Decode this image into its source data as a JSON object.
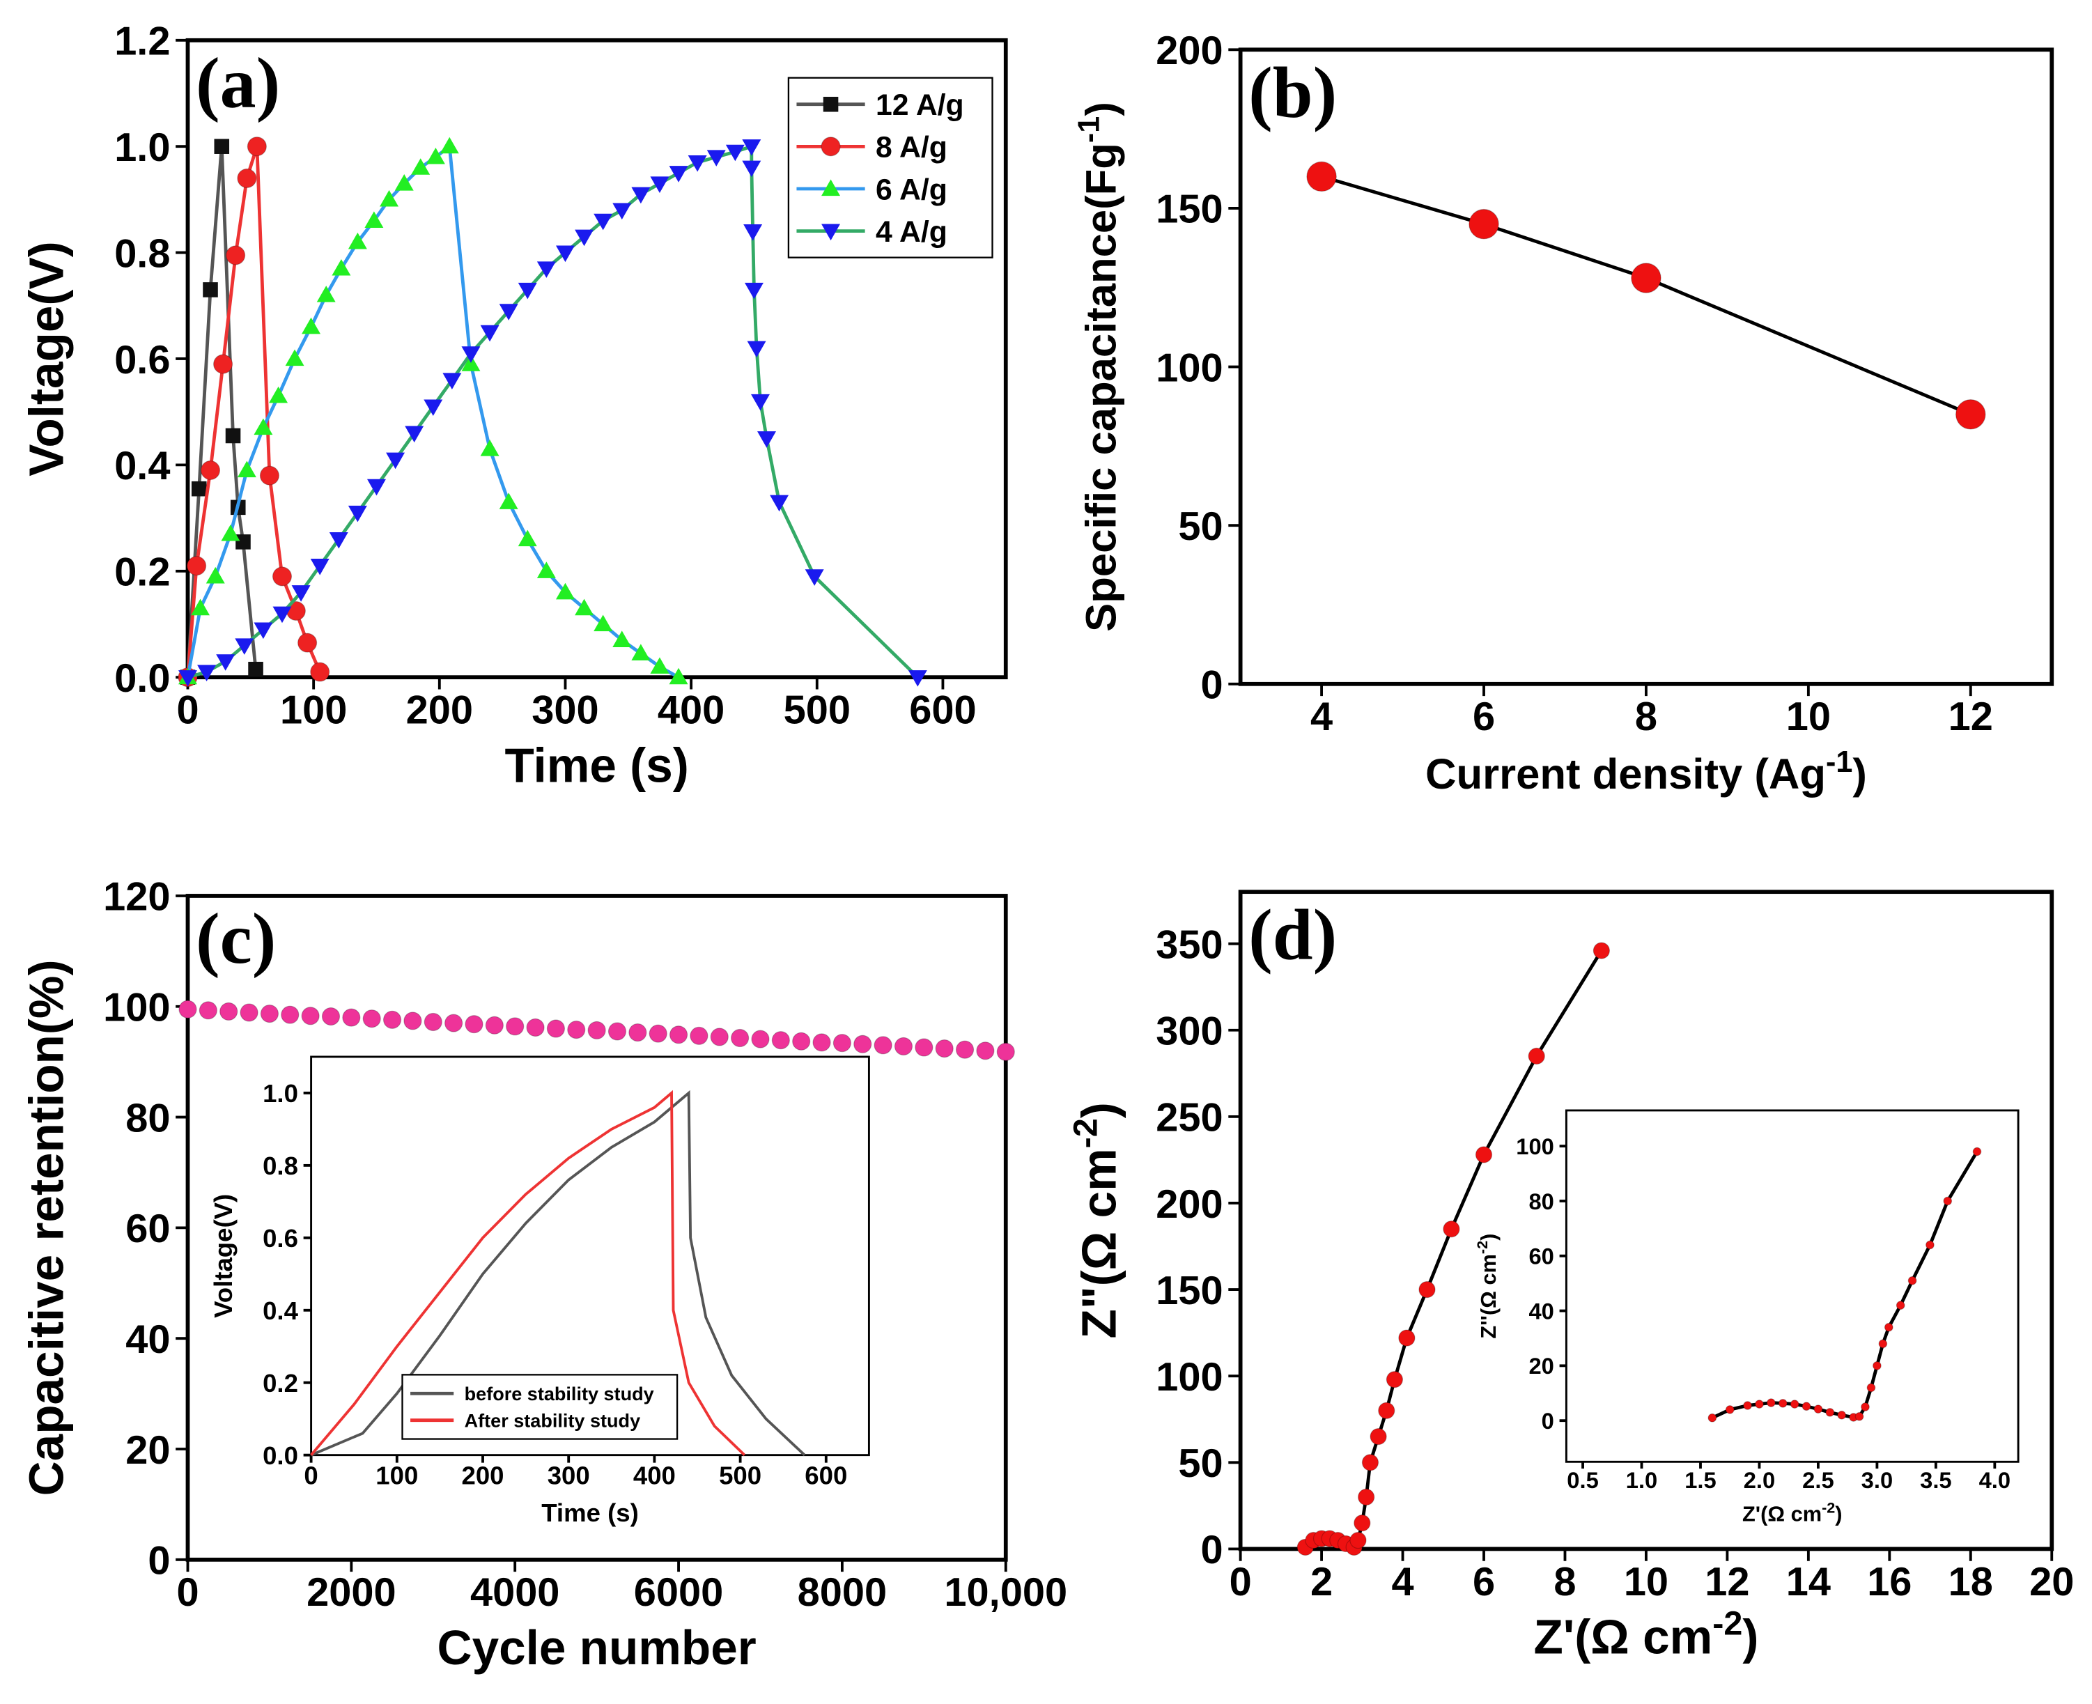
{
  "chart_data": [
    {
      "type": "line",
      "label": "(a)",
      "xlabel": "Time (s)",
      "ylabel": "Voltage(V)",
      "xlim": [
        0,
        650
      ],
      "xticks": [
        0,
        100,
        200,
        300,
        400,
        500,
        600
      ],
      "ylim": [
        0,
        1.2
      ],
      "yticks": [
        {
          "value": 0,
          "label": "0.0"
        },
        0.2,
        0.4,
        0.6,
        0.8,
        {
          "value": 1,
          "label": "1.0"
        },
        1.2
      ],
      "legend": "upper right",
      "series": [
        {
          "name": "12 A/g",
          "color": "#111111",
          "line_color": "#555555",
          "marker": "square",
          "x": [
            0,
            9,
            18,
            27,
            36,
            40,
            44,
            54
          ],
          "values": [
            0,
            0.355,
            0.73,
            1.0,
            0.455,
            0.32,
            0.255,
            0.015
          ]
        },
        {
          "name": "8  A/g",
          "color": "#ee2222",
          "line_color": "#ee3333",
          "marker": "circle",
          "x": [
            0,
            7,
            18,
            28,
            38,
            47,
            55,
            65,
            75,
            86,
            95,
            105
          ],
          "values": [
            0,
            0.21,
            0.39,
            0.59,
            0.795,
            0.94,
            1.0,
            0.38,
            0.19,
            0.125,
            0.065,
            0.01
          ]
        },
        {
          "name": "6  A/g",
          "color": "#22ee22",
          "line_color": "#3399ee",
          "marker": "triangle-up",
          "x": [
            0,
            10,
            22,
            34,
            47,
            60,
            72,
            85,
            98,
            110,
            122,
            135,
            148,
            160,
            172,
            185,
            197,
            208,
            225,
            240,
            255,
            270,
            285,
            300,
            315,
            330,
            345,
            360,
            375,
            390
          ],
          "values": [
            0,
            0.13,
            0.19,
            0.27,
            0.39,
            0.47,
            0.53,
            0.6,
            0.66,
            0.72,
            0.77,
            0.82,
            0.86,
            0.9,
            0.93,
            0.96,
            0.98,
            1.0,
            0.59,
            0.43,
            0.33,
            0.26,
            0.2,
            0.16,
            0.13,
            0.1,
            0.07,
            0.045,
            0.02,
            0
          ]
        },
        {
          "name": "4  A/g",
          "color": "#1a1aee",
          "line_color": "#33aa66",
          "marker": "triangle-down",
          "x": [
            0,
            15,
            30,
            45,
            60,
            75,
            90,
            105,
            120,
            135,
            150,
            165,
            180,
            195,
            210,
            225,
            240,
            255,
            270,
            285,
            300,
            315,
            330,
            345,
            360,
            375,
            390,
            405,
            420,
            435,
            448,
            448,
            449,
            450,
            452,
            455,
            460,
            470,
            498,
            580
          ],
          "values": [
            0,
            0.01,
            0.03,
            0.06,
            0.09,
            0.12,
            0.16,
            0.21,
            0.26,
            0.31,
            0.36,
            0.41,
            0.46,
            0.51,
            0.56,
            0.61,
            0.65,
            0.69,
            0.73,
            0.77,
            0.8,
            0.83,
            0.86,
            0.88,
            0.91,
            0.93,
            0.95,
            0.97,
            0.98,
            0.99,
            1.0,
            0.96,
            0.84,
            0.73,
            0.62,
            0.52,
            0.45,
            0.33,
            0.19,
            0
          ]
        }
      ]
    },
    {
      "type": "line",
      "label": "(b)",
      "xlabel": [
        "Current density (Ag",
        {
          "sup": "-1"
        },
        ")"
      ],
      "ylabel": [
        "Specific capacitance(Fg",
        {
          "sup": "-1"
        },
        ")"
      ],
      "xlim": [
        3,
        13
      ],
      "xticks": [
        4,
        6,
        8,
        10,
        12
      ],
      "ylim": [
        0,
        200
      ],
      "yticks": [
        0,
        50,
        100,
        150,
        200
      ],
      "series": [
        {
          "color": "#ee1111",
          "line_color": "#000000",
          "marker": "circle",
          "x": [
            4,
            6,
            8,
            12
          ],
          "values": [
            160,
            145,
            128,
            85
          ]
        }
      ]
    },
    {
      "type": "scatter",
      "label": "(c)",
      "xlabel": "Cycle number",
      "ylabel": "Capacitive retention(%)",
      "xlim": [
        0,
        10000
      ],
      "xticks": [
        0,
        2000,
        4000,
        6000,
        8000,
        {
          "value": 10000,
          "label": "10,000"
        }
      ],
      "ylim": [
        0,
        120
      ],
      "yticks": [
        0,
        20,
        40,
        60,
        80,
        100,
        120
      ],
      "series": [
        {
          "color": "#ee3399",
          "marker": "circle",
          "x": [
            0,
            250,
            500,
            750,
            1000,
            1250,
            1500,
            1750,
            2000,
            2250,
            2500,
            2750,
            3000,
            3250,
            3500,
            3750,
            4000,
            4250,
            4500,
            4750,
            5000,
            5250,
            5500,
            5750,
            6000,
            6250,
            6500,
            6750,
            7000,
            7250,
            7500,
            7750,
            8000,
            8250,
            8500,
            8750,
            9000,
            9250,
            9500,
            9750,
            10000
          ],
          "values": [
            99.5,
            99.3,
            99.1,
            98.9,
            98.7,
            98.5,
            98.3,
            98.2,
            98.0,
            97.8,
            97.6,
            97.4,
            97.2,
            97.0,
            96.8,
            96.6,
            96.4,
            96.2,
            96.0,
            95.8,
            95.7,
            95.5,
            95.3,
            95.1,
            94.9,
            94.7,
            94.5,
            94.3,
            94.1,
            93.9,
            93.7,
            93.5,
            93.4,
            93.2,
            93.0,
            92.8,
            92.6,
            92.4,
            92.2,
            92.0,
            91.8
          ]
        }
      ]
    },
    {
      "type": "line",
      "xlabel": "Time (s)",
      "ylabel": "Voltage(V)",
      "xlim": [
        0,
        650
      ],
      "xticks": [
        0,
        100,
        200,
        300,
        400,
        500,
        600
      ],
      "ylim": [
        0,
        1.1
      ],
      "yticks": [
        {
          "value": 0,
          "label": "0.0"
        },
        0.2,
        0.4,
        0.6,
        0.8,
        {
          "value": 1,
          "label": "1.0"
        }
      ],
      "legend": "lower left",
      "series": [
        {
          "name": "before stability study",
          "color": "#555555",
          "x": [
            0,
            60,
            100,
            150,
            200,
            250,
            300,
            350,
            400,
            435,
            440,
            442,
            460,
            490,
            530,
            575
          ],
          "values": [
            0,
            0.06,
            0.17,
            0.33,
            0.5,
            0.64,
            0.76,
            0.85,
            0.92,
            0.99,
            1.0,
            0.6,
            0.38,
            0.22,
            0.1,
            0
          ]
        },
        {
          "name": "After stability study",
          "color": "#ee3333",
          "x": [
            0,
            50,
            100,
            150,
            200,
            250,
            300,
            350,
            400,
            420,
            422,
            440,
            470,
            505
          ],
          "values": [
            0,
            0.14,
            0.3,
            0.45,
            0.6,
            0.72,
            0.82,
            0.9,
            0.96,
            1.0,
            0.4,
            0.2,
            0.08,
            0
          ]
        }
      ]
    },
    {
      "type": "line",
      "label": "(d)",
      "xlabel": [
        "Z'(Ω cm",
        {
          "sup": "-2"
        },
        ")"
      ],
      "ylabel": [
        "Z\"(Ω cm",
        {
          "sup": "-2"
        },
        ")"
      ],
      "xlim": [
        0,
        20
      ],
      "xticks": [
        0,
        2,
        4,
        6,
        8,
        10,
        12,
        14,
        16,
        18,
        20
      ],
      "ylim": [
        0,
        380
      ],
      "yticks": [
        0,
        50,
        100,
        150,
        200,
        250,
        300,
        350
      ],
      "series": [
        {
          "color": "#ee1111",
          "line_color": "#000000",
          "marker": "circle",
          "x": [
            1.6,
            1.8,
            2.0,
            2.2,
            2.4,
            2.6,
            2.8,
            2.9,
            3.0,
            3.1,
            3.2,
            3.4,
            3.6,
            3.8,
            4.1,
            4.6,
            5.2,
            6.0,
            7.3,
            8.9
          ],
          "values": [
            1,
            5,
            6,
            6,
            5,
            3,
            1,
            5,
            15,
            30,
            50,
            65,
            80,
            98,
            122,
            150,
            185,
            228,
            285,
            346
          ]
        }
      ]
    },
    {
      "type": "line",
      "xlabel": [
        "Z'(Ω cm",
        {
          "sup": "-2"
        },
        ")"
      ],
      "ylabel": [
        "Z''(Ω cm",
        {
          "sup": "-2"
        },
        ")"
      ],
      "xlim": [
        0.36,
        4.2
      ],
      "xticks": [
        0.5,
        {
          "value": 1,
          "label": "1.0"
        },
        1.5,
        {
          "value": 2,
          "label": "2.0"
        },
        2.5,
        {
          "value": 3,
          "label": "3.0"
        },
        3.5,
        {
          "value": 4,
          "label": "4.0"
        }
      ],
      "ylim": [
        -15,
        113
      ],
      "yticks": [
        0,
        20,
        40,
        60,
        80,
        100
      ],
      "series": [
        {
          "color": "#ee1111",
          "line_color": "#000000",
          "marker": "circle",
          "x": [
            1.6,
            1.75,
            1.9,
            2.0,
            2.1,
            2.2,
            2.3,
            2.4,
            2.5,
            2.6,
            2.7,
            2.8,
            2.85,
            2.9,
            2.95,
            3.0,
            3.05,
            3.1,
            3.2,
            3.3,
            3.45,
            3.6,
            3.85
          ],
          "values": [
            1,
            4,
            5.5,
            6,
            6.5,
            6.3,
            6,
            5.2,
            4.2,
            3,
            2,
            1.2,
            1.5,
            5,
            12,
            20,
            28,
            34,
            42,
            51,
            64,
            80,
            98
          ]
        }
      ]
    }
  ]
}
